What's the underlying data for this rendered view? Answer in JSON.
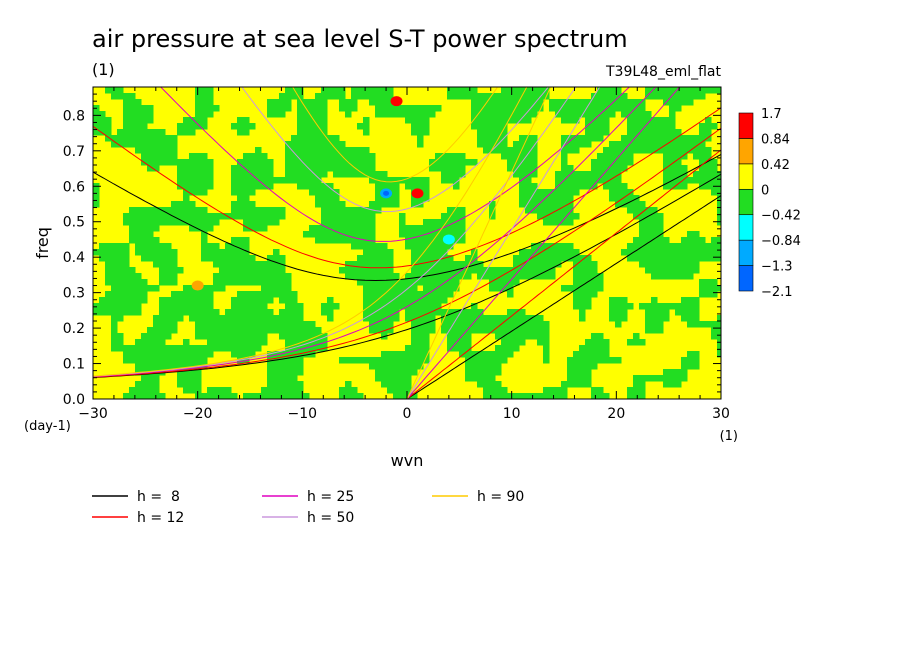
{
  "chart_data": {
    "type": "heatmap",
    "title": "air pressure at sea level S-T power spectrum",
    "title_unit": "(1)",
    "subtitle_right": "T39L48_eml_flat",
    "xlabel": "wvn",
    "xlabel_unit": "(1)",
    "ylabel": "freq",
    "ylabel_unit": "(day-1)",
    "xlim": [
      -30,
      30
    ],
    "ylim": [
      0,
      0.88
    ],
    "x_ticks": [
      -30,
      -20,
      -10,
      0,
      10,
      20,
      30
    ],
    "x_tick_labels": [
      "-30",
      "-20",
      "-10",
      "0",
      "10",
      "20",
      "30"
    ],
    "y_ticks": [
      0,
      0.1,
      0.2,
      0.3,
      0.4,
      0.5,
      0.6,
      0.7,
      0.8
    ],
    "y_tick_labels": [
      "0.0",
      "0.1",
      "0.2",
      "0.3",
      "0.4",
      "0.5",
      "0.6",
      "0.7",
      "0.8"
    ],
    "colorbar": {
      "colors": [
        "#0066ff",
        "#00aaff",
        "#00ffff",
        "#22dd22",
        "#ffff00",
        "#ffa500",
        "#ff0000"
      ],
      "labels": [
        "1.7",
        "0.84",
        "0.42",
        "0",
        "-0.42",
        "-0.84",
        "-1.3",
        "-2.1"
      ]
    },
    "background_pattern": "mixed green (-0.42..0) and yellow (0..0.42) patches",
    "highlights": [
      {
        "x": -2,
        "y": 0.58,
        "level": "-1.3"
      },
      {
        "x": 4,
        "y": 0.45,
        "level": "-0.84"
      },
      {
        "x": 1,
        "y": 0.58,
        "level": "1.7"
      },
      {
        "x": -1,
        "y": 0.84,
        "level": "1.7"
      },
      {
        "x": -20,
        "y": 0.32,
        "level": "0.84"
      }
    ],
    "series": [
      {
        "name": "h =  8",
        "color": "#000000",
        "h": 8
      },
      {
        "name": "h = 12",
        "color": "#ff0000",
        "h": 12
      },
      {
        "name": "h = 25",
        "color": "#e000c0",
        "h": 25
      },
      {
        "name": "h = 50",
        "color": "#cc99dd",
        "h": 50
      },
      {
        "name": "h = 90",
        "color": "#ffcc00",
        "h": 90
      }
    ],
    "legend_placement": "bottom"
  }
}
